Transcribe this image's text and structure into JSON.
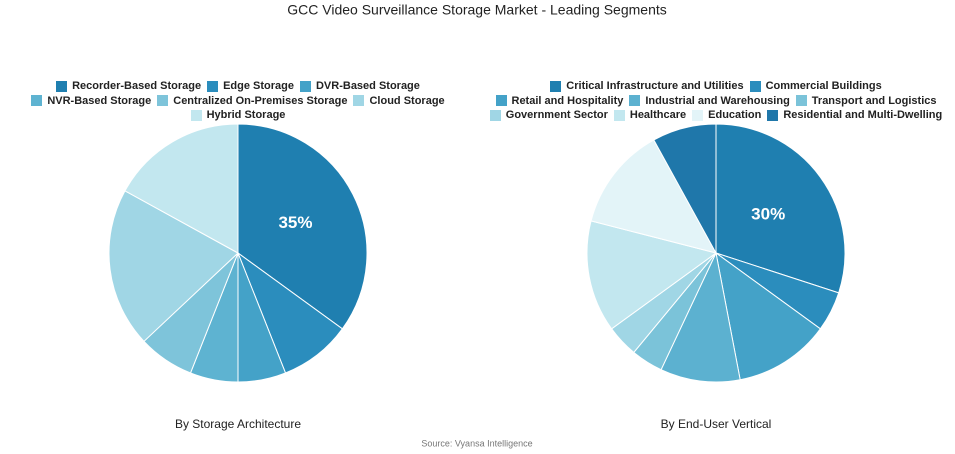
{
  "title": "GCC Video Surveillance Storage Market - Leading Segments",
  "source": "Source: Vyansa Intelligence",
  "chart_data": [
    {
      "type": "pie",
      "title": "By Storage Architecture",
      "labels": [
        "Recorder-Based Storage",
        "Edge Storage",
        "DVR-Based Storage",
        "NVR-Based Storage",
        "Centralized On-Premises Storage",
        "Cloud Storage",
        "Hybrid Storage"
      ],
      "values": [
        35,
        9,
        6,
        6,
        7,
        20,
        17
      ],
      "value_labels": [
        "35%",
        null,
        null,
        null,
        null,
        null,
        null
      ],
      "colors": [
        "#1f7fb0",
        "#2b8dbd",
        "#44a2c8",
        "#5eb3d1",
        "#7ec4da",
        "#a0d6e5",
        "#c2e7ef"
      ]
    },
    {
      "type": "pie",
      "title": "By End-User Vertical",
      "labels": [
        "Critical Infrastructure and Utilities",
        "Commercial Buildings",
        "Retail and Hospitality",
        "Industrial and Warehousing",
        "Transport and Logistics",
        "Government Sector",
        "Healthcare",
        "Education",
        "Residential and Multi-Dwelling"
      ],
      "values": [
        30,
        5,
        12,
        10,
        4,
        4,
        14,
        13,
        8
      ],
      "value_labels": [
        "30%",
        null,
        null,
        null,
        null,
        null,
        null,
        null,
        null
      ],
      "colors": [
        "#1f7fb0",
        "#2b8dbd",
        "#44a2c8",
        "#5cb1d0",
        "#7bc3d9",
        "#a0d6e5",
        "#c2e7ef",
        "#e3f4f8",
        "#1f77aa"
      ]
    }
  ]
}
